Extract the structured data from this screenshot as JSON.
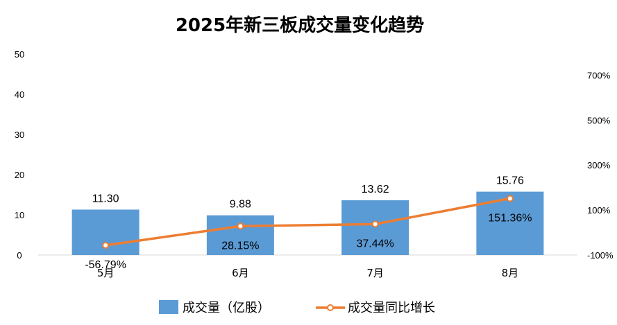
{
  "colors": {
    "bar": "#5B9BD5",
    "line": "#ED7D31",
    "axis": "#D9D9D9"
  },
  "chart_data": {
    "type": "bar",
    "title": "2025年新三板成交量变化趋势",
    "categories": [
      "5月",
      "6月",
      "7月",
      "8月"
    ],
    "series": [
      {
        "name": "成交量（亿股）",
        "type": "bar",
        "axis": "left",
        "values": [
          11.3,
          9.88,
          13.62,
          15.76
        ],
        "labels": [
          "11.30",
          "9.88",
          "13.62",
          "15.76"
        ]
      },
      {
        "name": "成交量同比增长",
        "type": "line",
        "axis": "right",
        "values": [
          -56.79,
          28.15,
          37.44,
          151.36
        ],
        "labels": [
          "-56.79%",
          "28.15%",
          "37.44%",
          "151.36%"
        ]
      }
    ],
    "ylim_left": [
      0,
      50
    ],
    "yticks_left": [
      "0",
      "10",
      "20",
      "30",
      "40",
      "50"
    ],
    "ylim_right": [
      -100,
      800
    ],
    "yticks_right": [
      "-100%",
      "100%",
      "300%",
      "500%",
      "700%"
    ],
    "legend_position": "bottom",
    "grid": false
  }
}
